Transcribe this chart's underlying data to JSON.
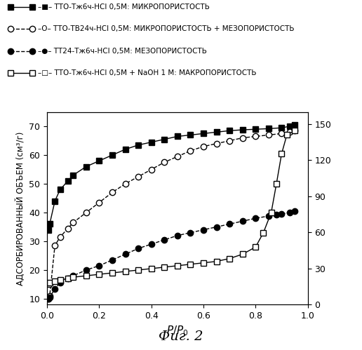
{
  "series": [
    {
      "x": [
        0.005,
        0.01,
        0.03,
        0.05,
        0.08,
        0.1,
        0.15,
        0.2,
        0.25,
        0.3,
        0.35,
        0.4,
        0.45,
        0.5,
        0.55,
        0.6,
        0.65,
        0.7,
        0.75,
        0.8,
        0.85,
        0.9,
        0.93,
        0.95
      ],
      "y": [
        34.0,
        36.0,
        44.0,
        48.0,
        51.0,
        53.0,
        56.0,
        58.0,
        60.0,
        62.0,
        63.5,
        64.5,
        65.5,
        66.5,
        67.0,
        67.5,
        68.0,
        68.5,
        68.8,
        69.0,
        69.2,
        69.5,
        70.0,
        70.5
      ],
      "marker": "s",
      "mfc": "black",
      "mec": "black",
      "linestyle": "-",
      "legend_text": "–■– ТТО-Тж6ч-HCl 0,5М: МИКРОПОРИСТОСТЬ"
    },
    {
      "x": [
        0.005,
        0.01,
        0.03,
        0.05,
        0.08,
        0.1,
        0.15,
        0.2,
        0.25,
        0.3,
        0.35,
        0.4,
        0.45,
        0.5,
        0.55,
        0.6,
        0.65,
        0.7,
        0.75,
        0.8,
        0.85,
        0.9,
        0.93,
        0.95
      ],
      "y": [
        10.0,
        11.0,
        28.5,
        31.5,
        34.5,
        36.5,
        40.0,
        43.5,
        47.0,
        50.0,
        52.5,
        55.0,
        57.5,
        59.5,
        61.5,
        63.0,
        64.0,
        65.0,
        66.0,
        66.5,
        67.0,
        67.5,
        68.0,
        68.5
      ],
      "marker": "o",
      "mfc": "white",
      "mec": "black",
      "linestyle": "--",
      "legend_text": "–O– ТТО-ТВ24ч-HCl 0,5М: МИКРОПОРИСТОСТЬ + МЕЗОПОРИСТОСТЬ"
    },
    {
      "x": [
        0.005,
        0.01,
        0.03,
        0.05,
        0.08,
        0.1,
        0.15,
        0.2,
        0.25,
        0.3,
        0.35,
        0.4,
        0.45,
        0.5,
        0.55,
        0.6,
        0.65,
        0.7,
        0.75,
        0.8,
        0.85,
        0.88,
        0.9,
        0.93,
        0.95
      ],
      "y": [
        10.0,
        10.5,
        13.5,
        15.5,
        17.0,
        18.0,
        20.0,
        21.5,
        23.5,
        25.5,
        27.5,
        29.0,
        30.5,
        32.0,
        33.0,
        34.0,
        35.0,
        36.0,
        37.0,
        38.0,
        38.8,
        39.2,
        39.5,
        40.0,
        40.5
      ],
      "marker": "o",
      "mfc": "black",
      "mec": "black",
      "linestyle": "--",
      "legend_text": "–●– ТТ24-Тж6ч-HCl 0,5М: МЕЗОПОРИСТОСТЬ"
    },
    {
      "x": [
        0.005,
        0.01,
        0.03,
        0.05,
        0.08,
        0.1,
        0.15,
        0.2,
        0.25,
        0.3,
        0.35,
        0.4,
        0.45,
        0.5,
        0.55,
        0.6,
        0.65,
        0.7,
        0.75,
        0.8,
        0.83,
        0.86,
        0.88,
        0.9,
        0.92,
        0.95
      ],
      "y": [
        15.0,
        15.5,
        16.0,
        16.5,
        17.0,
        17.5,
        18.0,
        18.5,
        19.0,
        19.5,
        20.0,
        20.5,
        21.0,
        21.5,
        22.0,
        22.5,
        23.0,
        24.0,
        25.5,
        28.0,
        33.0,
        40.0,
        50.0,
        60.5,
        67.0,
        68.5
      ],
      "marker": "s",
      "mfc": "white",
      "mec": "black",
      "linestyle": "-",
      "legend_text": "–□– ТТО-Тж6ч-HCl 0,5М + NaOH 1 М: МАКРОПОРИСТОСТЬ"
    }
  ],
  "ylabel_left": "АДСОРБИРОВАННЫЙ ОБЪЕМ (см³/г)",
  "ylim_left": [
    8,
    75
  ],
  "ylim_right": [
    0,
    160
  ],
  "yticks_left": [
    10,
    20,
    30,
    40,
    50,
    60,
    70
  ],
  "yticks_right": [
    0,
    30,
    60,
    90,
    120,
    150
  ],
  "xlim": [
    0.0,
    1.0
  ],
  "xticks": [
    0.0,
    0.2,
    0.4,
    0.6,
    0.8,
    1.0
  ],
  "title": "Фиг. 2",
  "background_color": "#ffffff",
  "markersize": 6,
  "linewidth": 1.0
}
